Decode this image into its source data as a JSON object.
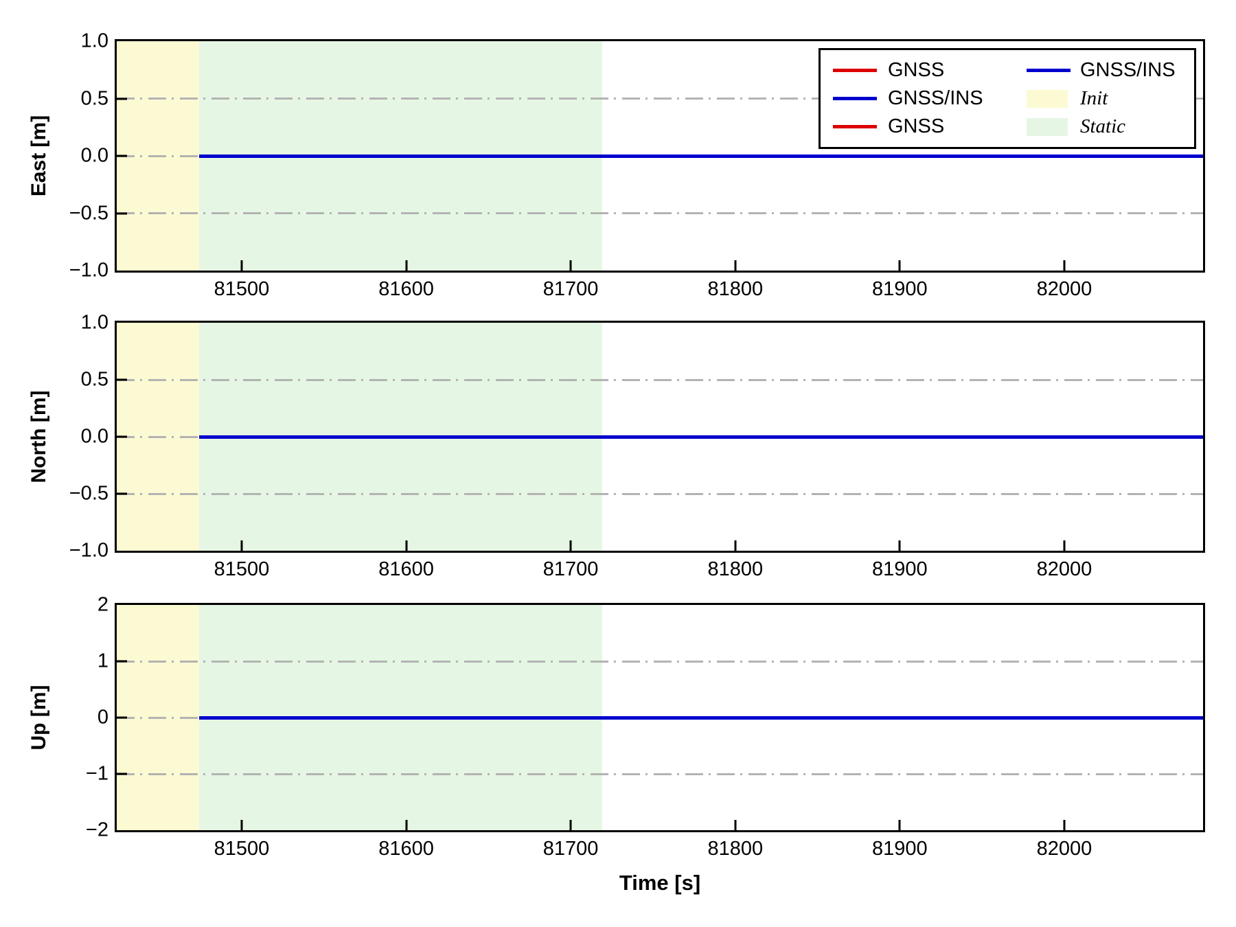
{
  "figure": {
    "xlabel": "Time [s]",
    "background_color": "#ffffff",
    "accent_colors": {
      "gnss_red": "#dc0000",
      "gnss_ins_blue": "#0000cd",
      "init_yellow": "#fbfad2",
      "static_green": "#e6f6e4",
      "grid_gray": "#b3b3b3"
    }
  },
  "legend": {
    "location": "upper right",
    "ncols": 2,
    "columns": [
      [
        {
          "label": "GNSS",
          "swatch": "line",
          "color": "#dc0000"
        },
        {
          "label": "GNSS/INS",
          "swatch": "line",
          "color": "#0000cd"
        },
        {
          "label": "GNSS",
          "swatch": "line",
          "color": "#dc0000"
        }
      ],
      [
        {
          "label": "GNSS/INS",
          "swatch": "line",
          "color": "#0000cd"
        },
        {
          "label": "Init",
          "swatch": "patch",
          "color": "#fbfad2"
        },
        {
          "label": "Static",
          "swatch": "patch",
          "color": "#e6f6e4"
        }
      ]
    ]
  },
  "chart_data": [
    {
      "type": "line",
      "panel": "East",
      "ylabel": "East [m]",
      "ylim": [
        -1.0,
        1.0
      ],
      "yticks": [
        1.0,
        0.5,
        0.0,
        -0.5,
        -1.0
      ],
      "ytick_labels": [
        "1.0",
        "0.5",
        "0.0",
        "−0.5",
        "−1.0"
      ],
      "xlim": [
        81424,
        82084
      ],
      "xticks": [
        81500,
        81600,
        81700,
        81800,
        81900,
        82000
      ],
      "xtick_labels": [
        "81500",
        "81600",
        "81700",
        "81800",
        "81900",
        "82000"
      ],
      "grid": {
        "axis": "y",
        "style": "dash-dot",
        "color": "#b3b3b3",
        "lines_at": [
          0.5,
          0.0,
          -0.5
        ]
      },
      "regions": [
        {
          "name": "Init",
          "x_range": [
            81424,
            81474
          ],
          "color": "#fbfad2"
        },
        {
          "name": "Static",
          "x_range": [
            81474,
            81719
          ],
          "color": "#e6f6e4"
        }
      ],
      "series": [
        {
          "name": "GNSS",
          "color": "#dc0000",
          "x_range": [
            81474,
            82084
          ],
          "y_constant": 0.0
        },
        {
          "name": "GNSS/INS",
          "color": "#0000cd",
          "x_range": [
            81474,
            82084
          ],
          "y_constant": 0.0
        }
      ]
    },
    {
      "type": "line",
      "panel": "North",
      "ylabel": "North [m]",
      "ylim": [
        -1.0,
        1.0
      ],
      "yticks": [
        1.0,
        0.5,
        0.0,
        -0.5,
        -1.0
      ],
      "ytick_labels": [
        "1.0",
        "0.5",
        "0.0",
        "−0.5",
        "−1.0"
      ],
      "xlim": [
        81424,
        82084
      ],
      "xticks": [
        81500,
        81600,
        81700,
        81800,
        81900,
        82000
      ],
      "xtick_labels": [
        "81500",
        "81600",
        "81700",
        "81800",
        "81900",
        "82000"
      ],
      "grid": {
        "axis": "y",
        "style": "dash-dot",
        "color": "#b3b3b3",
        "lines_at": [
          0.5,
          0.0,
          -0.5
        ]
      },
      "regions": [
        {
          "name": "Init",
          "x_range": [
            81424,
            81474
          ],
          "color": "#fbfad2"
        },
        {
          "name": "Static",
          "x_range": [
            81474,
            81719
          ],
          "color": "#e6f6e4"
        }
      ],
      "series": [
        {
          "name": "GNSS",
          "color": "#dc0000",
          "x_range": [
            81474,
            82084
          ],
          "y_constant": 0.0
        },
        {
          "name": "GNSS/INS",
          "color": "#0000cd",
          "x_range": [
            81474,
            82084
          ],
          "y_constant": 0.0
        }
      ]
    },
    {
      "type": "line",
      "panel": "Up",
      "ylabel": "Up [m]",
      "ylim": [
        -2,
        2
      ],
      "yticks": [
        2,
        1,
        0,
        -1,
        -2
      ],
      "ytick_labels": [
        "2",
        "1",
        "0",
        "−1",
        "−2"
      ],
      "xlim": [
        81424,
        82084
      ],
      "xticks": [
        81500,
        81600,
        81700,
        81800,
        81900,
        82000
      ],
      "xtick_labels": [
        "81500",
        "81600",
        "81700",
        "81800",
        "81900",
        "82000"
      ],
      "grid": {
        "axis": "y",
        "style": "dash-dot",
        "color": "#b3b3b3",
        "lines_at": [
          1,
          0,
          -1
        ]
      },
      "regions": [
        {
          "name": "Init",
          "x_range": [
            81424,
            81474
          ],
          "color": "#fbfad2"
        },
        {
          "name": "Static",
          "x_range": [
            81474,
            81719
          ],
          "color": "#e6f6e4"
        }
      ],
      "series": [
        {
          "name": "GNSS",
          "color": "#dc0000",
          "x_range": [
            81474,
            82084
          ],
          "y_constant": 0.0
        },
        {
          "name": "GNSS/INS",
          "color": "#0000cd",
          "x_range": [
            81474,
            82084
          ],
          "y_constant": 0.0
        }
      ]
    }
  ]
}
